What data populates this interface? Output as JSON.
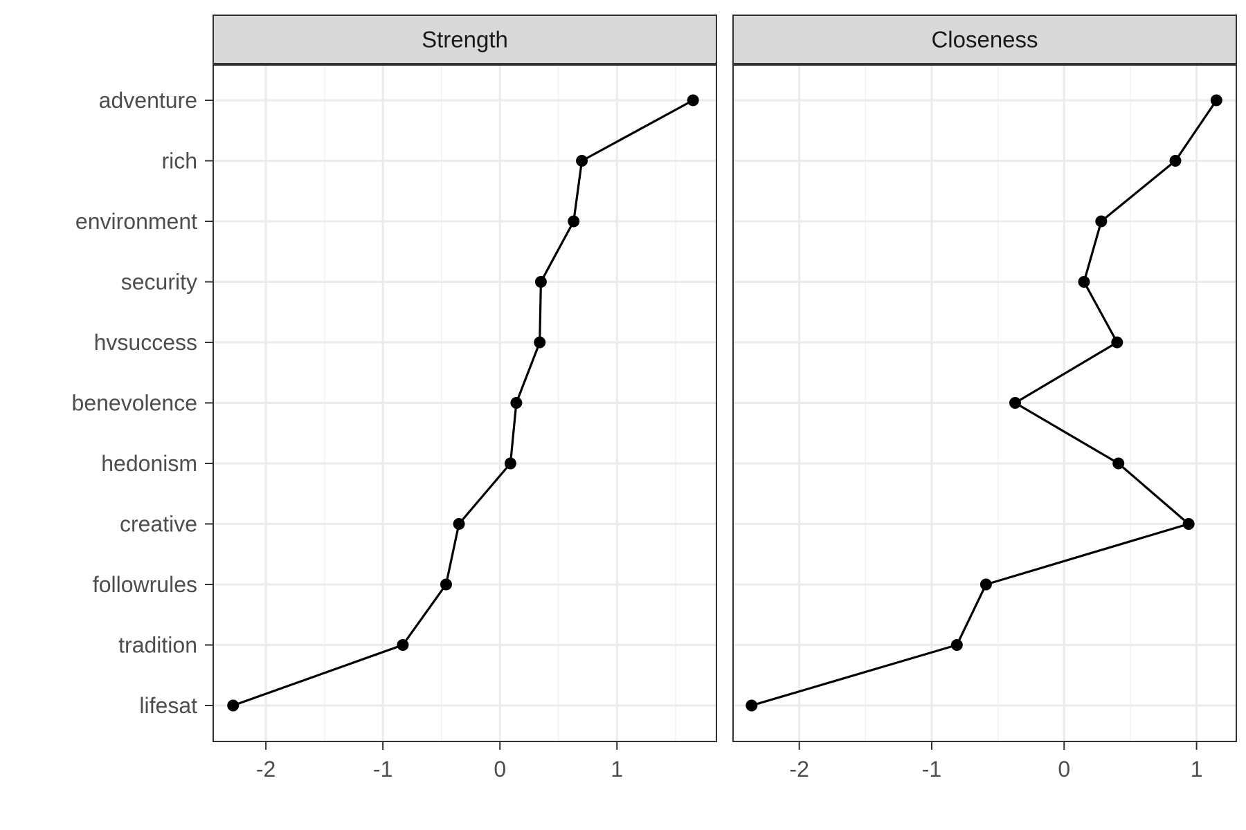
{
  "chart_data": {
    "type": "line",
    "orientation": "horizontal",
    "categories": [
      "adventure",
      "rich",
      "environment",
      "security",
      "hvsuccess",
      "benevolence",
      "hedonism",
      "creative",
      "followrules",
      "tradition",
      "lifesat"
    ],
    "panels": [
      {
        "title": "Strength",
        "xlim": [
          -2.45,
          1.85
        ],
        "xticks": [
          -2,
          -1,
          0,
          1
        ],
        "x_tick_labels": [
          "-2",
          "-1",
          "0",
          "1"
        ],
        "values": [
          1.65,
          0.7,
          0.63,
          0.35,
          0.34,
          0.14,
          0.09,
          -0.35,
          -0.46,
          -0.83,
          -2.28
        ]
      },
      {
        "title": "Closeness",
        "xlim": [
          -2.5,
          1.3
        ],
        "xticks": [
          -2,
          -1,
          0,
          1
        ],
        "x_tick_labels": [
          "-2",
          "-1",
          "0",
          "1"
        ],
        "values": [
          1.15,
          0.84,
          0.28,
          0.15,
          0.4,
          -0.37,
          0.41,
          0.94,
          -0.59,
          -0.81,
          -2.36
        ]
      }
    ],
    "xlabel": "",
    "ylabel": "",
    "grid": true,
    "theme": "bw",
    "colors": {
      "line": "#000000",
      "point": "#000000",
      "strip_fill": "#d9d9d9",
      "strip_border": "#333333",
      "grid_major": "#ebebeb",
      "grid_minor": "#f2f2f2",
      "panel_border": "#333333",
      "text": "#4d4d4d"
    }
  }
}
